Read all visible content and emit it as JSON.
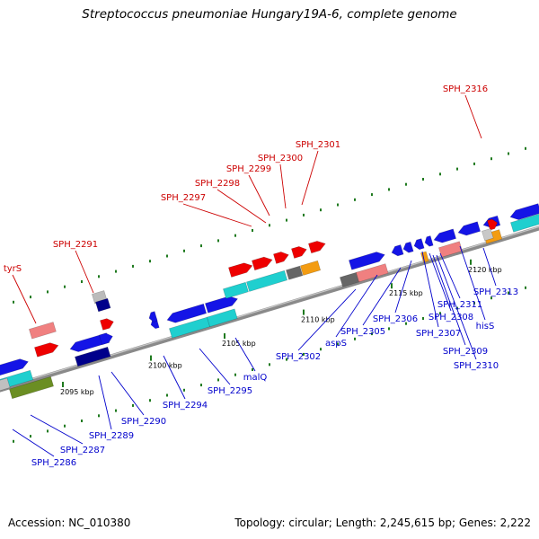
{
  "title": "Streptococcus pneumoniae Hungary19A-6, complete genome",
  "footer": {
    "accession": "Accession: NC_010380",
    "topology": "Topology: circular; Length: 2,245,615 bp; Genes: 2,222"
  },
  "colors": {
    "backbone": "#8a8a8a",
    "dots": "#1f7a1f",
    "top_labels": "#cc0000",
    "bottom_labels": "#0000cc",
    "blue_gene": "#1414e6",
    "cyan_gene": "#1fcfcf",
    "red_gene": "#ee0000",
    "pink_gene": "#f08080",
    "orange_gene": "#f39c12",
    "gray_gene": "#666666",
    "navy_gene": "#00008b",
    "olive_gene": "#6b8e23"
  },
  "scale_labels": [
    "2095 kbp",
    "2100 kbp",
    "2105 kbp",
    "2110 kbp",
    "2115 kbp",
    "2120 kbp"
  ],
  "top_labels": [
    "tyrS",
    "SPH_2291",
    "SPH_2297",
    "SPH_2298",
    "SPH_2299",
    "SPH_2300",
    "SPH_2301",
    "SPH_2316"
  ],
  "bottom_labels": [
    "SPH_2286",
    "SPH_2287",
    "SPH_2289",
    "SPH_2290",
    "SPH_2294",
    "SPH_2295",
    "malQ",
    "SPH_2302",
    "aspS",
    "SPH_2305",
    "SPH_2306",
    "SPH_2307",
    "SPH_2308",
    "SPH_2309",
    "SPH_2310",
    "SPH_2311",
    "hisS",
    "SPH_2313"
  ]
}
